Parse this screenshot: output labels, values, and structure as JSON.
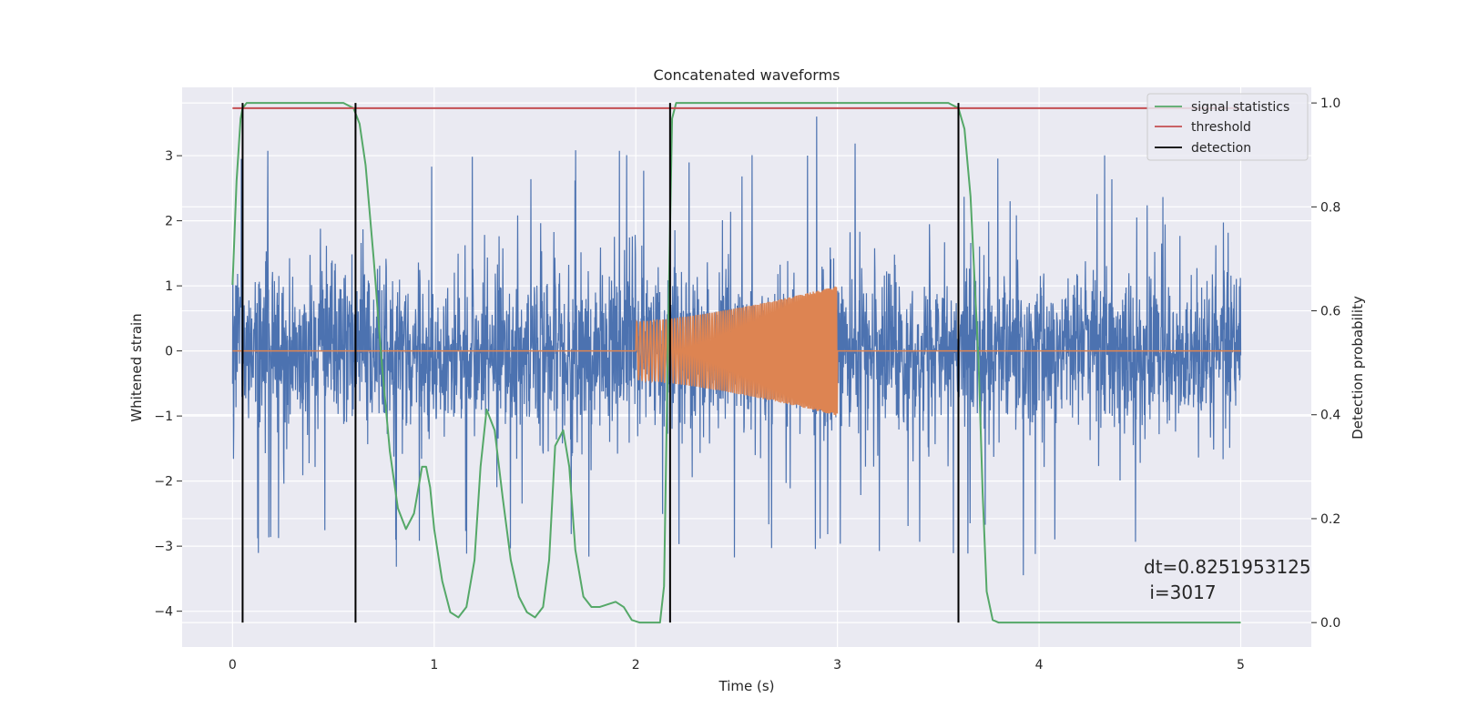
{
  "chart_data": {
    "type": "line",
    "title": "Concatenated waveforms",
    "xlabel": "Time (s)",
    "ylabel": "Whitened strain",
    "y2label": "Detection probability",
    "xlim": [
      -0.25,
      5.35
    ],
    "ylim": [
      -4.55,
      4.05
    ],
    "y2lim": [
      -0.047,
      1.03
    ],
    "x_ticks": [
      0,
      1,
      2,
      3,
      4,
      5
    ],
    "y_ticks": [
      -4,
      -3,
      -2,
      -1,
      0,
      1,
      2,
      3
    ],
    "y2_ticks": [
      0.0,
      0.2,
      0.4,
      0.6,
      0.8,
      1.0
    ],
    "x_tick_labels": [
      "0",
      "1",
      "2",
      "3",
      "4",
      "5"
    ],
    "y_tick_labels": [
      "−4",
      "−3",
      "−2",
      "−1",
      "0",
      "1",
      "2",
      "3"
    ],
    "y2_tick_labels": [
      "0.0",
      "0.2",
      "0.4",
      "0.6",
      "0.8",
      "1.0"
    ],
    "grid": true,
    "background": "#eaeaf2",
    "legend": {
      "placement": "top-right",
      "entries": [
        {
          "label": "signal statistics",
          "color": "#55a868"
        },
        {
          "label": "threshold",
          "color": "#c44e52"
        },
        {
          "label": "detection",
          "color": "#000000"
        }
      ]
    },
    "series": [
      {
        "name": "whitened strain",
        "color": "#4c72b0",
        "axis": "left",
        "kind": "noise",
        "x_range": [
          0,
          5
        ],
        "std": 0.95,
        "min": -4.15,
        "max": 3.6
      },
      {
        "name": "template",
        "color": "#dd8452",
        "axis": "left",
        "kind": "chirp",
        "x_range": [
          2.0,
          3.0
        ],
        "amp_start": 0.45,
        "amp_end": 1.0,
        "baseline": 0
      },
      {
        "name": "signal statistics",
        "color": "#55a868",
        "axis": "right",
        "x": [
          0.0,
          0.02,
          0.04,
          0.05,
          0.07,
          0.1,
          0.2,
          0.4,
          0.55,
          0.6,
          0.63,
          0.66,
          0.7,
          0.74,
          0.78,
          0.82,
          0.86,
          0.9,
          0.94,
          0.96,
          0.98,
          1.0,
          1.04,
          1.08,
          1.12,
          1.16,
          1.2,
          1.23,
          1.26,
          1.3,
          1.34,
          1.38,
          1.42,
          1.46,
          1.5,
          1.54,
          1.57,
          1.6,
          1.64,
          1.67,
          1.7,
          1.74,
          1.78,
          1.82,
          1.86,
          1.9,
          1.94,
          1.98,
          2.02,
          2.08,
          2.12,
          2.14,
          2.16,
          2.18,
          2.2,
          2.25,
          3.0,
          3.55,
          3.6,
          3.63,
          3.66,
          3.7,
          3.72,
          3.74,
          3.77,
          3.8,
          4.0,
          5.0
        ],
        "y": [
          0.65,
          0.85,
          0.97,
          0.99,
          1.0,
          1.0,
          1.0,
          1.0,
          1.0,
          0.99,
          0.96,
          0.88,
          0.7,
          0.5,
          0.33,
          0.22,
          0.18,
          0.21,
          0.3,
          0.3,
          0.26,
          0.18,
          0.08,
          0.02,
          0.01,
          0.03,
          0.12,
          0.3,
          0.41,
          0.37,
          0.24,
          0.12,
          0.05,
          0.02,
          0.01,
          0.03,
          0.12,
          0.34,
          0.37,
          0.3,
          0.14,
          0.05,
          0.03,
          0.03,
          0.035,
          0.04,
          0.03,
          0.005,
          0.0,
          0.0,
          0.0,
          0.07,
          0.55,
          0.97,
          1.0,
          1.0,
          1.0,
          1.0,
          0.99,
          0.95,
          0.82,
          0.5,
          0.25,
          0.06,
          0.005,
          0.0,
          0.0,
          0.0
        ]
      },
      {
        "name": "threshold",
        "color": "#c44e52",
        "axis": "right",
        "x": [
          0,
          5
        ],
        "y": [
          0.99,
          0.99
        ]
      }
    ],
    "detections": {
      "color": "#000000",
      "x": [
        0.05,
        0.61,
        2.17,
        3.6
      ],
      "ylim_right": [
        0.0,
        1.0
      ]
    },
    "annotation": {
      "line1": "dt=0.8251953125",
      "line2": " i=3017"
    }
  }
}
